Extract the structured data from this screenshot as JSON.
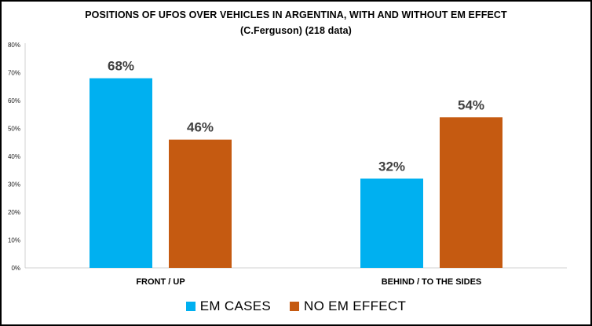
{
  "chart_data": {
    "type": "bar",
    "title": "POSITIONS OF UFOS OVER VEHICLES IN ARGENTINA, WITH AND WITHOUT EM EFFECT",
    "subtitle": "(C.Ferguson) (218 data)",
    "categories": [
      "FRONT / UP",
      "BEHIND / TO THE SIDES"
    ],
    "series": [
      {
        "name": "EM CASES",
        "values": [
          68,
          32
        ],
        "labels": [
          "68%",
          "32%"
        ],
        "color": "#00b0f0"
      },
      {
        "name": "NO EM EFFECT",
        "values": [
          46,
          54
        ],
        "labels": [
          "46%",
          "54%"
        ],
        "color": "#c55a11"
      }
    ],
    "ylim": [
      0,
      80
    ],
    "yticks": [
      0,
      10,
      20,
      30,
      40,
      50,
      60,
      70,
      80
    ],
    "ytick_labels": [
      "0%",
      "10%",
      "20%",
      "30%",
      "40%",
      "50%",
      "60%",
      "70%",
      "80%"
    ],
    "grid": false,
    "legend_position": "bottom"
  }
}
